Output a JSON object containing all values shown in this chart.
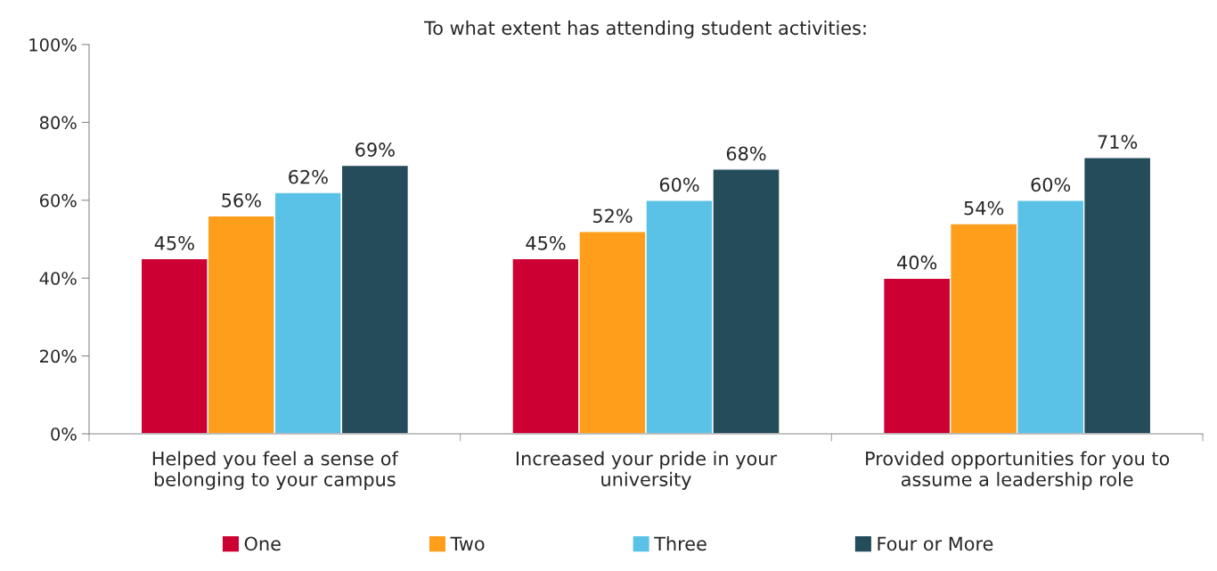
{
  "chart_data": {
    "type": "bar",
    "title": "To what extent has attending student activities:",
    "categories": [
      "Helped you feel a sense of\nbelonging to your campus",
      "Increased your pride in your\nuniversity",
      "Provided opportunities for you to\nassume a leadership role"
    ],
    "series": [
      {
        "name": "One",
        "color": "#cc0033",
        "values": [
          45,
          45,
          40
        ],
        "value_labels": [
          "45%",
          "45%",
          "40%"
        ]
      },
      {
        "name": "Two",
        "color": "#ff9e1b",
        "values": [
          56,
          52,
          54
        ],
        "value_labels": [
          "56%",
          "52%",
          "54%"
        ]
      },
      {
        "name": "Three",
        "color": "#5bc2e7",
        "values": [
          62,
          60,
          60
        ],
        "value_labels": [
          "62%",
          "60%",
          "60%"
        ]
      },
      {
        "name": "Four or More",
        "color": "#244c5a",
        "values": [
          69,
          68,
          71
        ],
        "value_labels": [
          "69%",
          "68%",
          "71%"
        ]
      }
    ],
    "ylim": [
      0,
      100
    ],
    "yticks": [
      {
        "value": 0,
        "label": "0%"
      },
      {
        "value": 20,
        "label": "20%"
      },
      {
        "value": 40,
        "label": "40%"
      },
      {
        "value": 60,
        "label": "60%"
      },
      {
        "value": 80,
        "label": "80%"
      },
      {
        "value": 100,
        "label": "100%"
      }
    ],
    "grid": false,
    "legend": "bottom"
  }
}
